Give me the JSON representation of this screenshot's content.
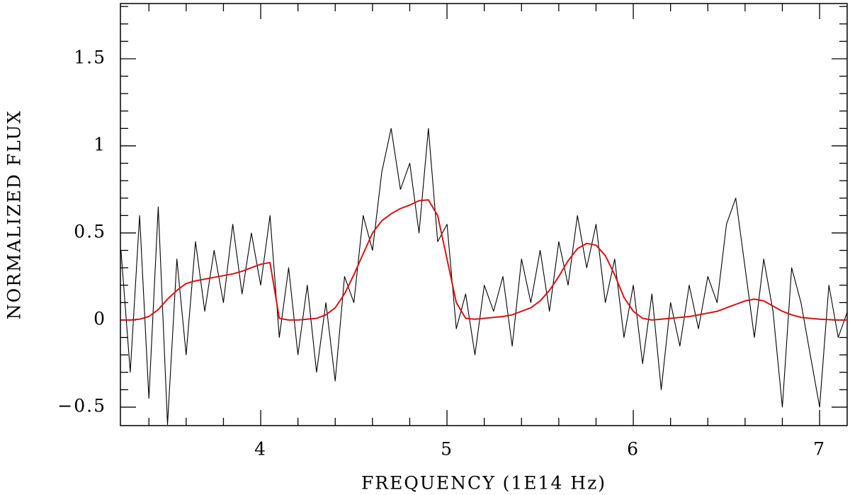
{
  "chart_data": {
    "type": "line",
    "xlabel": "FREQUENCY (1E14 Hz)",
    "ylabel": "NORMALIZED FLUX",
    "x": [
      3.25,
      3.3,
      3.35,
      3.4,
      3.45,
      3.5,
      3.55,
      3.6,
      3.65,
      3.7,
      3.75,
      3.8,
      3.85,
      3.9,
      3.95,
      4.0,
      4.05,
      4.1,
      4.15,
      4.2,
      4.25,
      4.3,
      4.35,
      4.4,
      4.45,
      4.5,
      4.55,
      4.6,
      4.65,
      4.7,
      4.75,
      4.8,
      4.85,
      4.9,
      4.95,
      5.0,
      5.05,
      5.1,
      5.15,
      5.2,
      5.25,
      5.3,
      5.35,
      5.4,
      5.45,
      5.5,
      5.55,
      5.6,
      5.65,
      5.7,
      5.75,
      5.8,
      5.85,
      5.9,
      5.95,
      6.0,
      6.05,
      6.1,
      6.15,
      6.2,
      6.25,
      6.3,
      6.35,
      6.4,
      6.45,
      6.5,
      6.55,
      6.6,
      6.65,
      6.7,
      6.75,
      6.8,
      6.85,
      6.9,
      6.95,
      7.0,
      7.05,
      7.1,
      7.15
    ],
    "series": [
      {
        "color": "#000000",
        "values": [
          0.4,
          -0.3,
          0.6,
          -0.45,
          0.65,
          -0.6,
          0.35,
          -0.2,
          0.45,
          0.05,
          0.4,
          0.1,
          0.55,
          0.15,
          0.5,
          0.2,
          0.6,
          -0.1,
          0.3,
          -0.2,
          0.2,
          -0.3,
          0.1,
          -0.35,
          0.25,
          0.1,
          0.6,
          0.4,
          0.85,
          1.1,
          0.75,
          0.9,
          0.5,
          1.1,
          0.45,
          0.55,
          -0.05,
          0.15,
          -0.2,
          0.2,
          0.05,
          0.25,
          -0.15,
          0.35,
          0.1,
          0.4,
          0.05,
          0.45,
          0.2,
          0.6,
          0.3,
          0.55,
          0.1,
          0.35,
          -0.1,
          0.2,
          -0.25,
          0.15,
          -0.4,
          0.1,
          -0.15,
          0.2,
          -0.05,
          0.25,
          0.1,
          0.55,
          0.7,
          0.3,
          -0.1,
          0.35,
          0.05,
          -0.5,
          0.3,
          0.1,
          -0.2,
          -0.5,
          0.2,
          -0.1,
          0.05
        ]
      },
      {
        "color": "#dd1111",
        "values": [
          0,
          0,
          0.005,
          0.02,
          0.06,
          0.12,
          0.17,
          0.21,
          0.225,
          0.235,
          0.245,
          0.255,
          0.265,
          0.28,
          0.3,
          0.32,
          0.33,
          0.01,
          0,
          0,
          0.005,
          0.01,
          0.03,
          0.07,
          0.15,
          0.26,
          0.38,
          0.5,
          0.57,
          0.61,
          0.64,
          0.66,
          0.685,
          0.69,
          0.6,
          0.35,
          0.1,
          0.01,
          0.005,
          0.01,
          0.015,
          0.02,
          0.03,
          0.05,
          0.07,
          0.11,
          0.17,
          0.25,
          0.34,
          0.41,
          0.44,
          0.43,
          0.37,
          0.26,
          0.13,
          0.05,
          0.01,
          0,
          0.005,
          0.01,
          0.015,
          0.02,
          0.03,
          0.04,
          0.05,
          0.07,
          0.09,
          0.11,
          0.12,
          0.11,
          0.08,
          0.05,
          0.03,
          0.015,
          0.01,
          0.005,
          0.002,
          0,
          0
        ]
      }
    ],
    "xlim": [
      3.247,
      7.148
    ],
    "ylim": [
      -0.606,
      1.817
    ],
    "xticks": [
      4,
      5,
      6,
      7
    ],
    "yticks": [
      {
        "value": -0.5,
        "label": "−0.5"
      },
      0,
      0.5,
      1,
      1.5
    ],
    "xminorticks": [
      3.4,
      3.6,
      3.8,
      4.2,
      4.4,
      4.6,
      4.8,
      5.2,
      5.4,
      5.6,
      5.8,
      6.2,
      6.4,
      6.6,
      6.8
    ],
    "yminorticks": [
      -0.4,
      -0.3,
      -0.2,
      -0.1,
      0.1,
      0.2,
      0.3,
      0.4,
      0.6,
      0.7,
      0.8,
      0.9,
      1.1,
      1.2,
      1.3,
      1.4,
      1.6,
      1.7,
      1.8
    ]
  }
}
